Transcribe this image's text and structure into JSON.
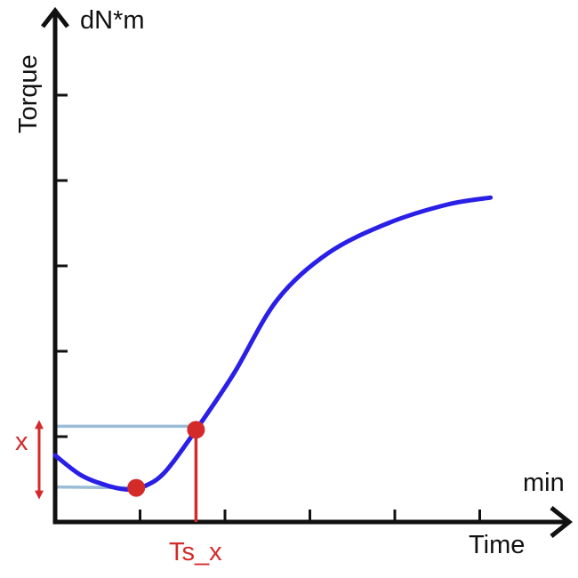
{
  "labels": {
    "y_unit": "dN*m",
    "y_axis": "Torque",
    "x_unit": "min",
    "x_axis": "Time",
    "scorch_marker": "Ts_x",
    "delta_marker": "x"
  },
  "colors": {
    "axis": "#111111",
    "curve": "#2a1fe6",
    "marker": "#d42a2a",
    "guide": "#9bbcd6"
  },
  "chart_data": {
    "type": "line",
    "title": "",
    "xlabel": "Time",
    "ylabel": "Torque",
    "x_unit": "min",
    "y_unit": "dN*m",
    "x_ticks": 5,
    "y_ticks": 5,
    "series": [
      {
        "points": [
          [
            0.0,
            0.78
          ],
          [
            0.3,
            0.55
          ],
          [
            0.6,
            0.43
          ],
          [
            0.85,
            0.38
          ],
          [
            1.05,
            0.42
          ],
          [
            1.3,
            0.6
          ],
          [
            1.7,
            1.15
          ],
          [
            2.1,
            1.75
          ],
          [
            2.6,
            2.6
          ],
          [
            3.2,
            3.15
          ],
          [
            3.9,
            3.5
          ],
          [
            4.6,
            3.72
          ],
          [
            5.1,
            3.8
          ]
        ]
      }
    ],
    "points_of_interest": [
      {
        "name": "min_torque",
        "x": 0.95,
        "y": 0.4
      },
      {
        "name": "scorch_point",
        "x": 1.65,
        "y": 1.08
      }
    ]
  }
}
